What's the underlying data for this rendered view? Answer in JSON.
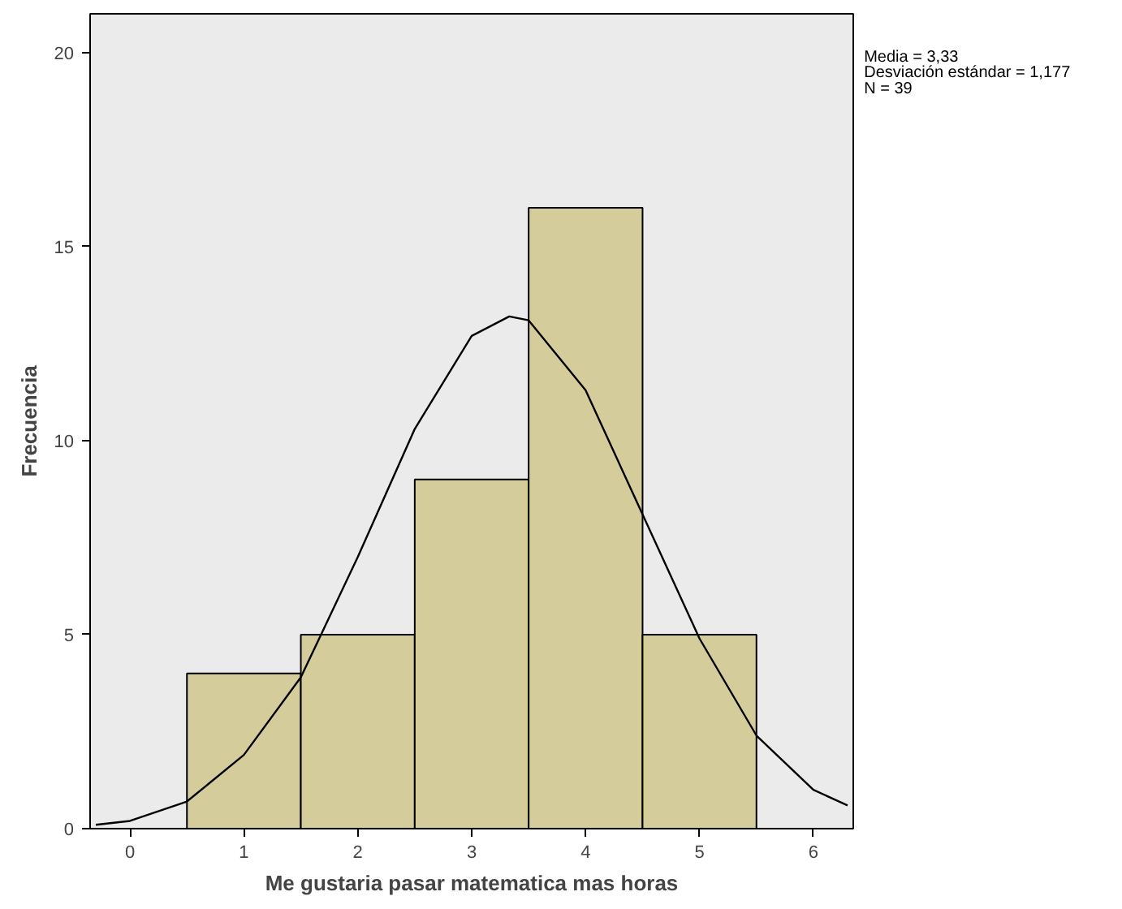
{
  "chart_data": {
    "type": "histogram",
    "xlabel": "Me gustaria pasar matematica mas horas",
    "ylabel": "Frecuencia",
    "bins": [
      0.5,
      1.5,
      2.5,
      3.5,
      4.5,
      5.5
    ],
    "values": [
      4,
      5,
      9,
      16,
      5
    ],
    "color": "#d4cc9a",
    "series": [
      {
        "type": "line",
        "color": "#000000",
        "x": [
          -0.3,
          0,
          0.5,
          1,
          1.5,
          2,
          2.5,
          3,
          3.33,
          3.5,
          4,
          4.5,
          5,
          5.5,
          6,
          6.3
        ],
        "values": [
          0.1,
          0.2,
          0.7,
          1.9,
          3.9,
          7.0,
          10.3,
          12.7,
          13.2,
          13.1,
          11.3,
          8.1,
          4.9,
          2.4,
          1.0,
          0.6
        ]
      }
    ],
    "xlim": [
      -0.35,
      6.35
    ],
    "ylim": [
      0,
      21
    ],
    "xticks": [
      0,
      1,
      2,
      3,
      4,
      5,
      6
    ],
    "yticks": [
      0,
      5,
      10,
      15,
      20
    ],
    "annotations": [
      "Media = 3,33",
      "Desviación estándar = 1,177",
      "N = 39"
    ],
    "grid": false
  }
}
